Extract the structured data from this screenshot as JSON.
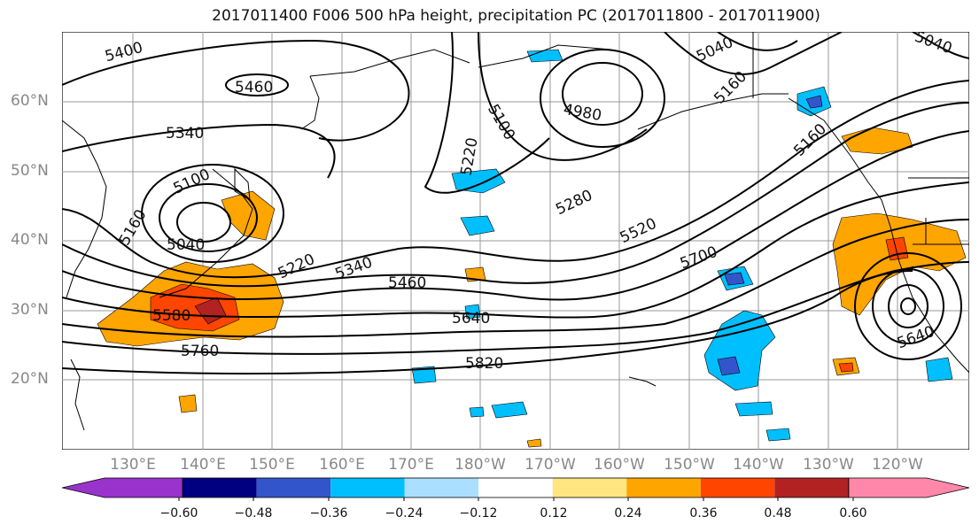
{
  "title": "2017011400 F006 500 hPa height, precipitation PC (2017011800 - 2017011900)",
  "lat_labels": [
    "60°N",
    "50°N",
    "40°N",
    "30°N",
    "20°N"
  ],
  "lon_labels": [
    "130°E",
    "140°E",
    "150°E",
    "160°E",
    "170°E",
    "180°W",
    "170°W",
    "160°W",
    "150°W",
    "140°W",
    "130°W",
    "120°W"
  ],
  "contour_labels": [
    "5400",
    "5460",
    "5340",
    "5100",
    "5160",
    "5040",
    "5220",
    "5340",
    "5460",
    "5580",
    "5760",
    "5640",
    "5820",
    "5220",
    "5100",
    "4980",
    "5040",
    "5160",
    "5280",
    "5520",
    "5700",
    "5640",
    "5040",
    "5160"
  ],
  "colorbar": {
    "ticks": [
      "−0.60",
      "−0.48",
      "−0.36",
      "−0.24",
      "−0.12",
      "0.12",
      "0.24",
      "0.36",
      "0.48",
      "0.60"
    ],
    "colors": [
      "#9933cc",
      "#000080",
      "#3355cc",
      "#00bfff",
      "#aadfff",
      "#ffffff",
      "#ffe680",
      "#ffa500",
      "#ff4500",
      "#b22222",
      "#ff88aa"
    ]
  }
}
